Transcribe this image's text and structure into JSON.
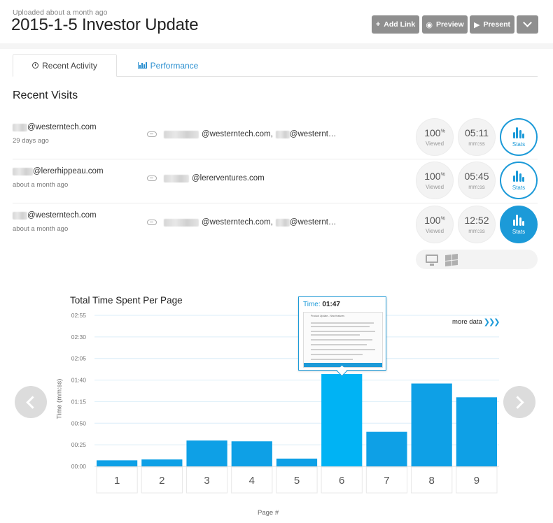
{
  "header": {
    "uploaded": "Uploaded about a month ago",
    "title": "2015-1-5 Investor Update",
    "buttons": {
      "add_link": "Add Link",
      "preview": "Preview",
      "present": "Present"
    }
  },
  "tabs": {
    "recent": "Recent Activity",
    "performance": "Performance"
  },
  "section_title": "Recent Visits",
  "visits": [
    {
      "email": "@westerntech.com",
      "time": "29 days ago",
      "recipients_a": "@westerntech.com,",
      "recipients_b": "@westernt…",
      "viewed": "100",
      "viewed_unit": "%",
      "viewed_label": "Viewed",
      "duration": "05:11",
      "duration_label": "mm:ss",
      "stats_label": "Stats"
    },
    {
      "email": "@lererhippeau.com",
      "time": "about a month ago",
      "recipients_a": "@lererventures.com",
      "recipients_b": "",
      "viewed": "100",
      "viewed_unit": "%",
      "viewed_label": "Viewed",
      "duration": "05:45",
      "duration_label": "mm:ss",
      "stats_label": "Stats"
    },
    {
      "email": "@westerntech.com",
      "time": "about a month ago",
      "recipients_a": "@westerntech.com,",
      "recipients_b": "@westernt…",
      "viewed": "100",
      "viewed_unit": "%",
      "viewed_label": "Viewed",
      "duration": "12:52",
      "duration_label": "mm:ss",
      "stats_label": "Stats"
    }
  ],
  "colors": {
    "accent": "#1c9ad8",
    "bar": "#0ea0e6",
    "bar_highlight": "#00b3f4",
    "button": "#8f8f8f"
  },
  "chart_data": {
    "type": "bar",
    "title": "Total Time Spent Per Page",
    "xlabel": "Page #",
    "ylabel": "Time (mm:ss)",
    "categories": [
      "1",
      "2",
      "3",
      "4",
      "5",
      "6",
      "7",
      "8",
      "9"
    ],
    "values_seconds": [
      7,
      8,
      30,
      29,
      9,
      107,
      40,
      96,
      80
    ],
    "yticks": [
      "00:00",
      "00:25",
      "00:50",
      "01:15",
      "01:40",
      "02:05",
      "02:30",
      "02:55"
    ],
    "ylim_seconds": [
      0,
      175
    ],
    "highlight_index": 5,
    "more_data_label": "more data",
    "tooltip": {
      "label": "Time:",
      "value": "01:47",
      "thumb_heading": "Product Update - New features"
    }
  }
}
